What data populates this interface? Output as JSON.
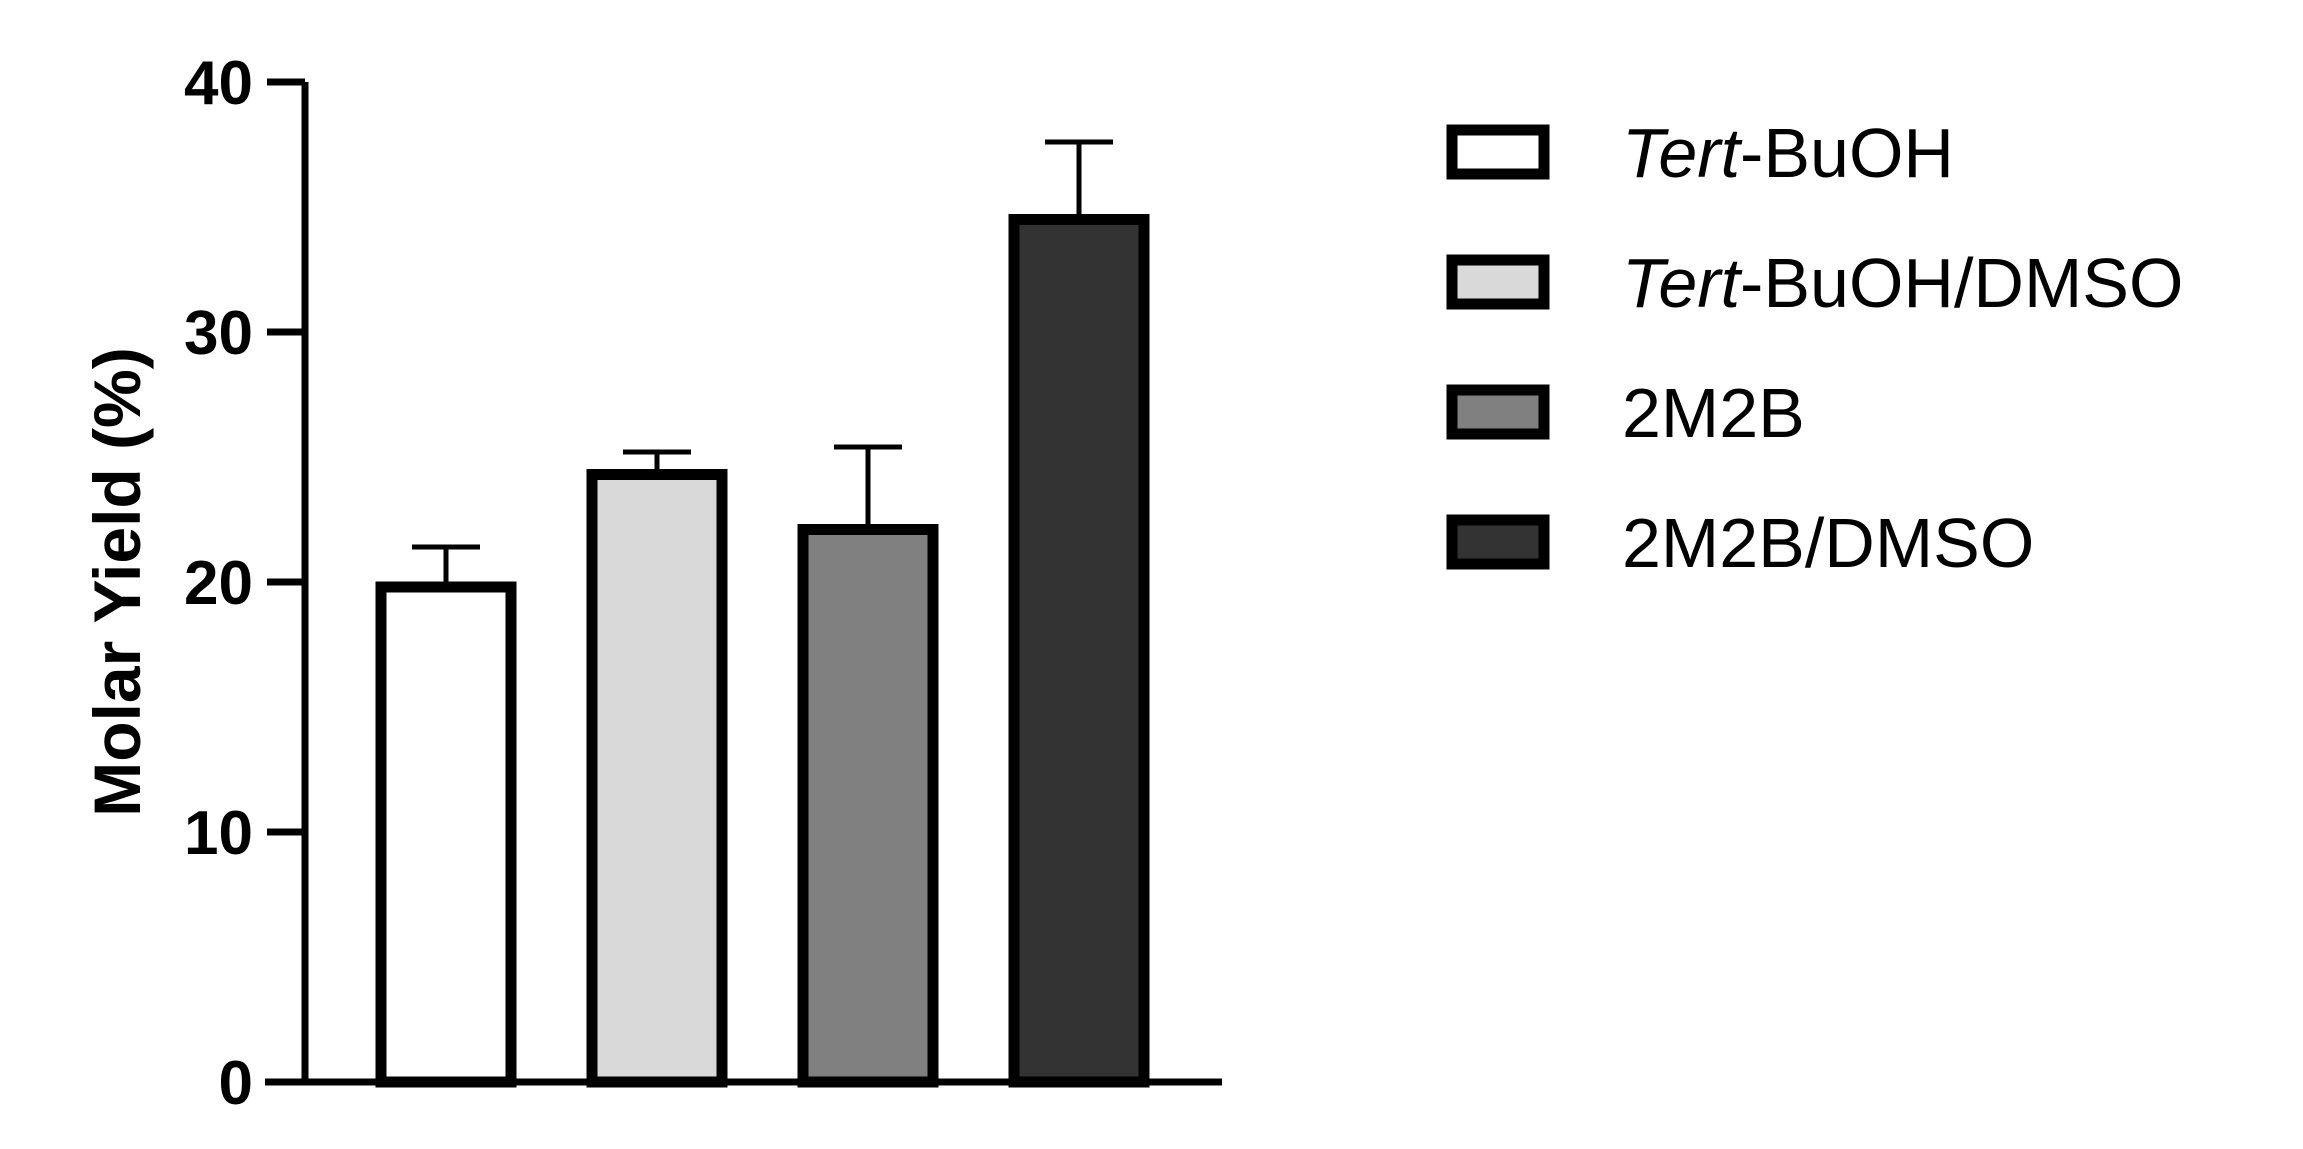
{
  "chart_data": {
    "type": "bar",
    "title": "",
    "xlabel": "",
    "ylabel": "Molar Yield (%)",
    "ylim": [
      0,
      40
    ],
    "yticks": [
      "0",
      "10",
      "20",
      "30",
      "40"
    ],
    "grid": false,
    "legend_position": "right",
    "series": [
      {
        "name": "Tert-BuOH",
        "name_italic": "Tert",
        "name_rest": "-BuOH",
        "value": 19.8,
        "error": 1.6,
        "color": "#ffffff"
      },
      {
        "name": "Tert-BuOH/DMSO",
        "name_italic": "Tert",
        "name_rest": "-BuOH/DMSO",
        "value": 24.3,
        "error": 0.9,
        "color": "#d9d9d9"
      },
      {
        "name": "2M2B",
        "name_italic": "",
        "name_rest": "2M2B",
        "value": 22.1,
        "error": 3.3,
        "color": "#808080"
      },
      {
        "name": "2M2B/DMSO",
        "name_italic": "",
        "name_rest": "2M2B/DMSO",
        "value": 34.5,
        "error": 3.1,
        "color": "#333333"
      }
    ]
  }
}
